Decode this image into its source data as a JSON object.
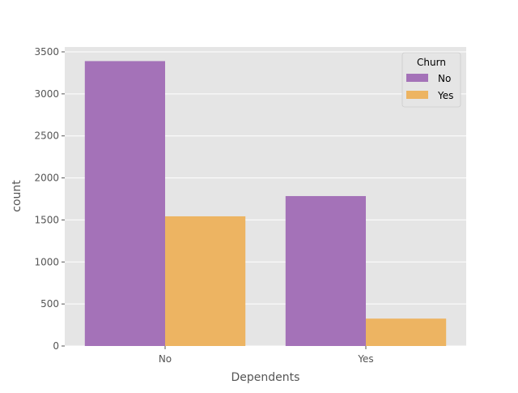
{
  "chart_data": {
    "type": "bar",
    "title": "",
    "xlabel": "Dependents",
    "ylabel": "count",
    "categories": [
      "No",
      "Yes"
    ],
    "series": [
      {
        "name": "No",
        "values": [
          3390,
          1784
        ],
        "color": "#A472B8"
      },
      {
        "name": "Yes",
        "values": [
          1543,
          326
        ],
        "color": "#EDB462"
      }
    ],
    "ylim": [
      0,
      3500
    ],
    "yticks": [
      0,
      500,
      1000,
      1500,
      2000,
      2500,
      3000,
      3500
    ],
    "grid": true,
    "legend": {
      "title": "Churn",
      "placement": "top-right"
    },
    "style": {
      "background": "#E5E5E5",
      "grid_color": "#FFFFFF"
    }
  }
}
